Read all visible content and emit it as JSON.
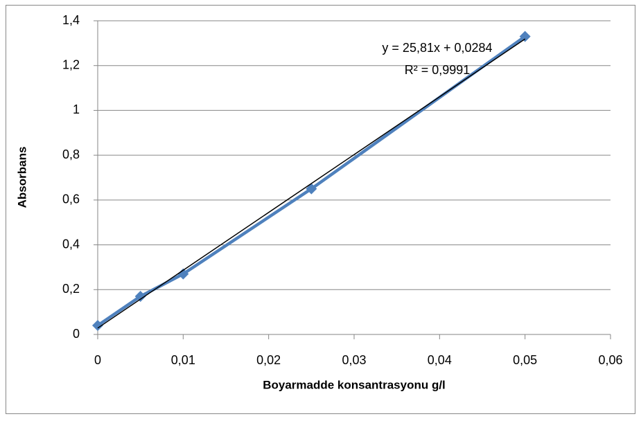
{
  "chart_data": {
    "type": "line",
    "xlabel": "Boyarmadde konsantrasyonu g/l",
    "ylabel": "Absorbans",
    "x": [
      0,
      0.005,
      0.01,
      0.025,
      0.05
    ],
    "series": [
      {
        "name": "Absorbans",
        "color": "#4f81bd",
        "values": [
          0.04,
          0.17,
          0.27,
          0.65,
          1.33
        ]
      }
    ],
    "xlim": [
      0,
      0.06
    ],
    "xticks": [
      0,
      {
        "value": 0.01,
        "label": "0,01"
      },
      {
        "value": 0.02,
        "label": "0,02"
      },
      {
        "value": 0.03,
        "label": "0,03"
      },
      {
        "value": 0.04,
        "label": "0,04"
      },
      {
        "value": 0.05,
        "label": "0,05"
      },
      {
        "value": 0.06,
        "label": "0,06"
      }
    ],
    "ylim": [
      0,
      1.4
    ],
    "yticks": [
      0,
      {
        "value": 0.2,
        "label": "0,2"
      },
      {
        "value": 0.4,
        "label": "0,4"
      },
      {
        "value": 0.6,
        "label": "0,6"
      },
      {
        "value": 0.8,
        "label": "0,8"
      },
      1,
      {
        "value": 1.2,
        "label": "1,2"
      },
      {
        "value": 1.4,
        "label": "1,4"
      }
    ],
    "grid": true,
    "trendline": {
      "slope": 25.81,
      "intercept": 0.0284,
      "equation": "y = 25,81x + 0,0284",
      "r_squared": 0.9991,
      "r_squared_label": "R² = 0,9991",
      "color": "#000000"
    }
  }
}
